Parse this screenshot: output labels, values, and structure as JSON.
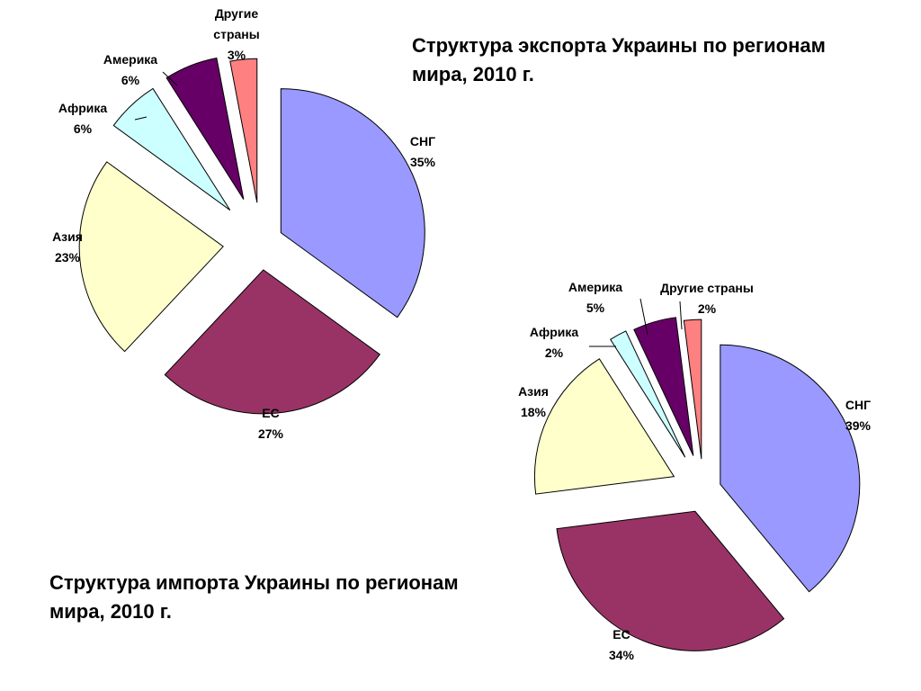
{
  "chart_data": [
    {
      "type": "pie",
      "title": "Структура экспорта Украины по регионам мира, 2010 г.",
      "slices": [
        {
          "name": "СНГ",
          "value": 35,
          "label": "35%",
          "color": "#9999ff"
        },
        {
          "name": "ЕС",
          "value": 27,
          "label": "27%",
          "color": "#993366"
        },
        {
          "name": "Азия",
          "value": 23,
          "label": "23%",
          "color": "#ffffcc"
        },
        {
          "name": "Африка",
          "value": 6,
          "label": "6%",
          "color": "#ccffff"
        },
        {
          "name": "Америка",
          "value": 6,
          "label": "6%",
          "color": "#660066"
        },
        {
          "name": "Другие страны",
          "value": 3,
          "label": "3%",
          "color": "#ff8080"
        }
      ]
    },
    {
      "type": "pie",
      "title": "Структура импорта Украины по регионам мира, 2010 г.",
      "slices": [
        {
          "name": "СНГ",
          "value": 39,
          "label": "39%",
          "color": "#9999ff"
        },
        {
          "name": "ЕС",
          "value": 34,
          "label": "34%",
          "color": "#993366"
        },
        {
          "name": "Азия",
          "value": 18,
          "label": "18%",
          "color": "#ffffcc"
        },
        {
          "name": "Африка",
          "value": 2,
          "label": "2%",
          "color": "#ccffff"
        },
        {
          "name": "Америка",
          "value": 5,
          "label": "5%",
          "color": "#660066"
        },
        {
          "name": "Другие страны",
          "value": 2,
          "label": "2%",
          "color": "#ff8080"
        }
      ]
    }
  ]
}
